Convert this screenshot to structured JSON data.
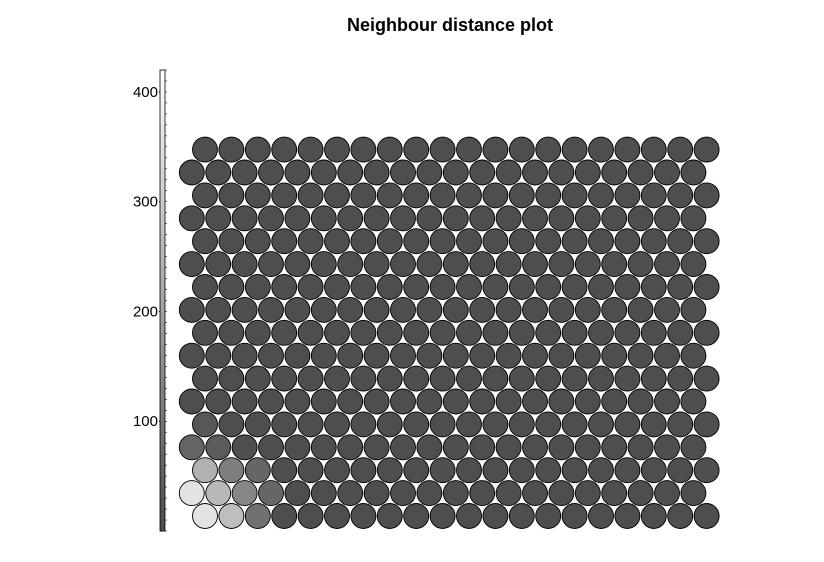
{
  "chart_data": {
    "type": "heatmap",
    "title": "Neighbour distance plot",
    "grid": {
      "cols": 20,
      "rows": 17,
      "layout": "hexagonal"
    },
    "color_scale": {
      "min": 0,
      "max": 420,
      "ticks": [
        100,
        200,
        300,
        400
      ],
      "tick_labels": [
        "100",
        "200",
        "300",
        "400"
      ],
      "low_color": "#4a4a4a",
      "high_color": "#ffffff"
    },
    "default_value": 10,
    "cell_values": [
      {
        "row": 0,
        "col": 0,
        "value": 355
      },
      {
        "row": 0,
        "col": 1,
        "value": 270
      },
      {
        "row": 0,
        "col": 2,
        "value": 90
      },
      {
        "row": 1,
        "col": 0,
        "value": 355
      },
      {
        "row": 1,
        "col": 1,
        "value": 255
      },
      {
        "row": 1,
        "col": 2,
        "value": 140
      },
      {
        "row": 1,
        "col": 3,
        "value": 65
      },
      {
        "row": 2,
        "col": 0,
        "value": 240
      },
      {
        "row": 2,
        "col": 1,
        "value": 120
      },
      {
        "row": 2,
        "col": 2,
        "value": 65
      },
      {
        "row": 3,
        "col": 0,
        "value": 60
      },
      {
        "row": 3,
        "col": 1,
        "value": 40
      },
      {
        "row": 4,
        "col": 0,
        "value": 30
      }
    ]
  }
}
